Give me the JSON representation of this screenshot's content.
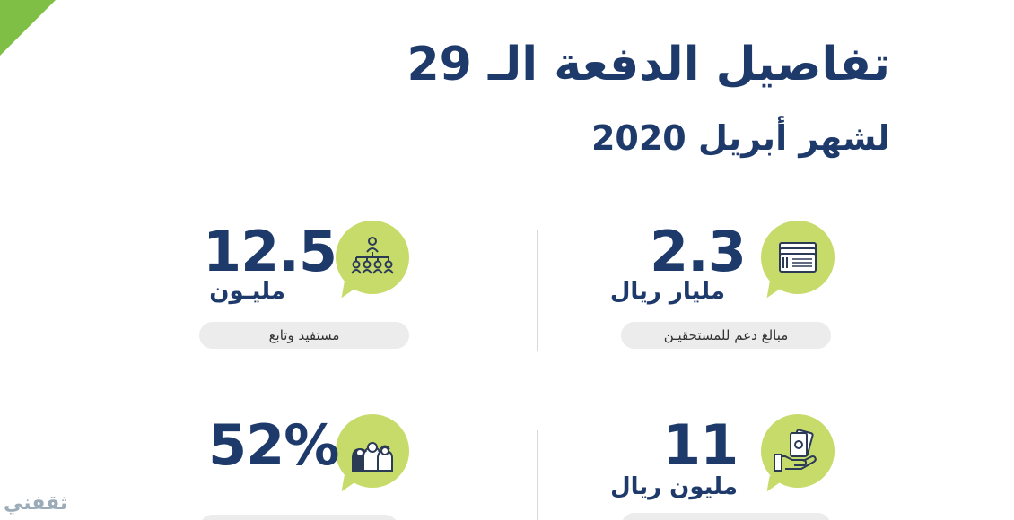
{
  "header": {
    "title": "تفاصيل الدفعة الـ 29",
    "subtitle": "لشهر أبريل 2020"
  },
  "stats": [
    {
      "value": "2.3",
      "unit": "مليار ريال",
      "caption": "مبالغ دعم للمستحقيـن",
      "icon": "money-stack-icon"
    },
    {
      "value": "12.5",
      "unit": "مليـون",
      "caption": "مستفيد وتابع",
      "icon": "people-hierarchy-icon"
    },
    {
      "value": "11",
      "unit": "مليون ريال",
      "caption": "",
      "icon": "hand-money-icon"
    },
    {
      "value": "52%",
      "unit": "",
      "caption": "",
      "icon": "family-icon"
    }
  ],
  "watermark": {
    "text": "ثقفني"
  },
  "colors": {
    "navy": "#1d3a6b",
    "bubble": "#c7db6b",
    "corner": "#7fbf46",
    "pill": "#ececec"
  }
}
